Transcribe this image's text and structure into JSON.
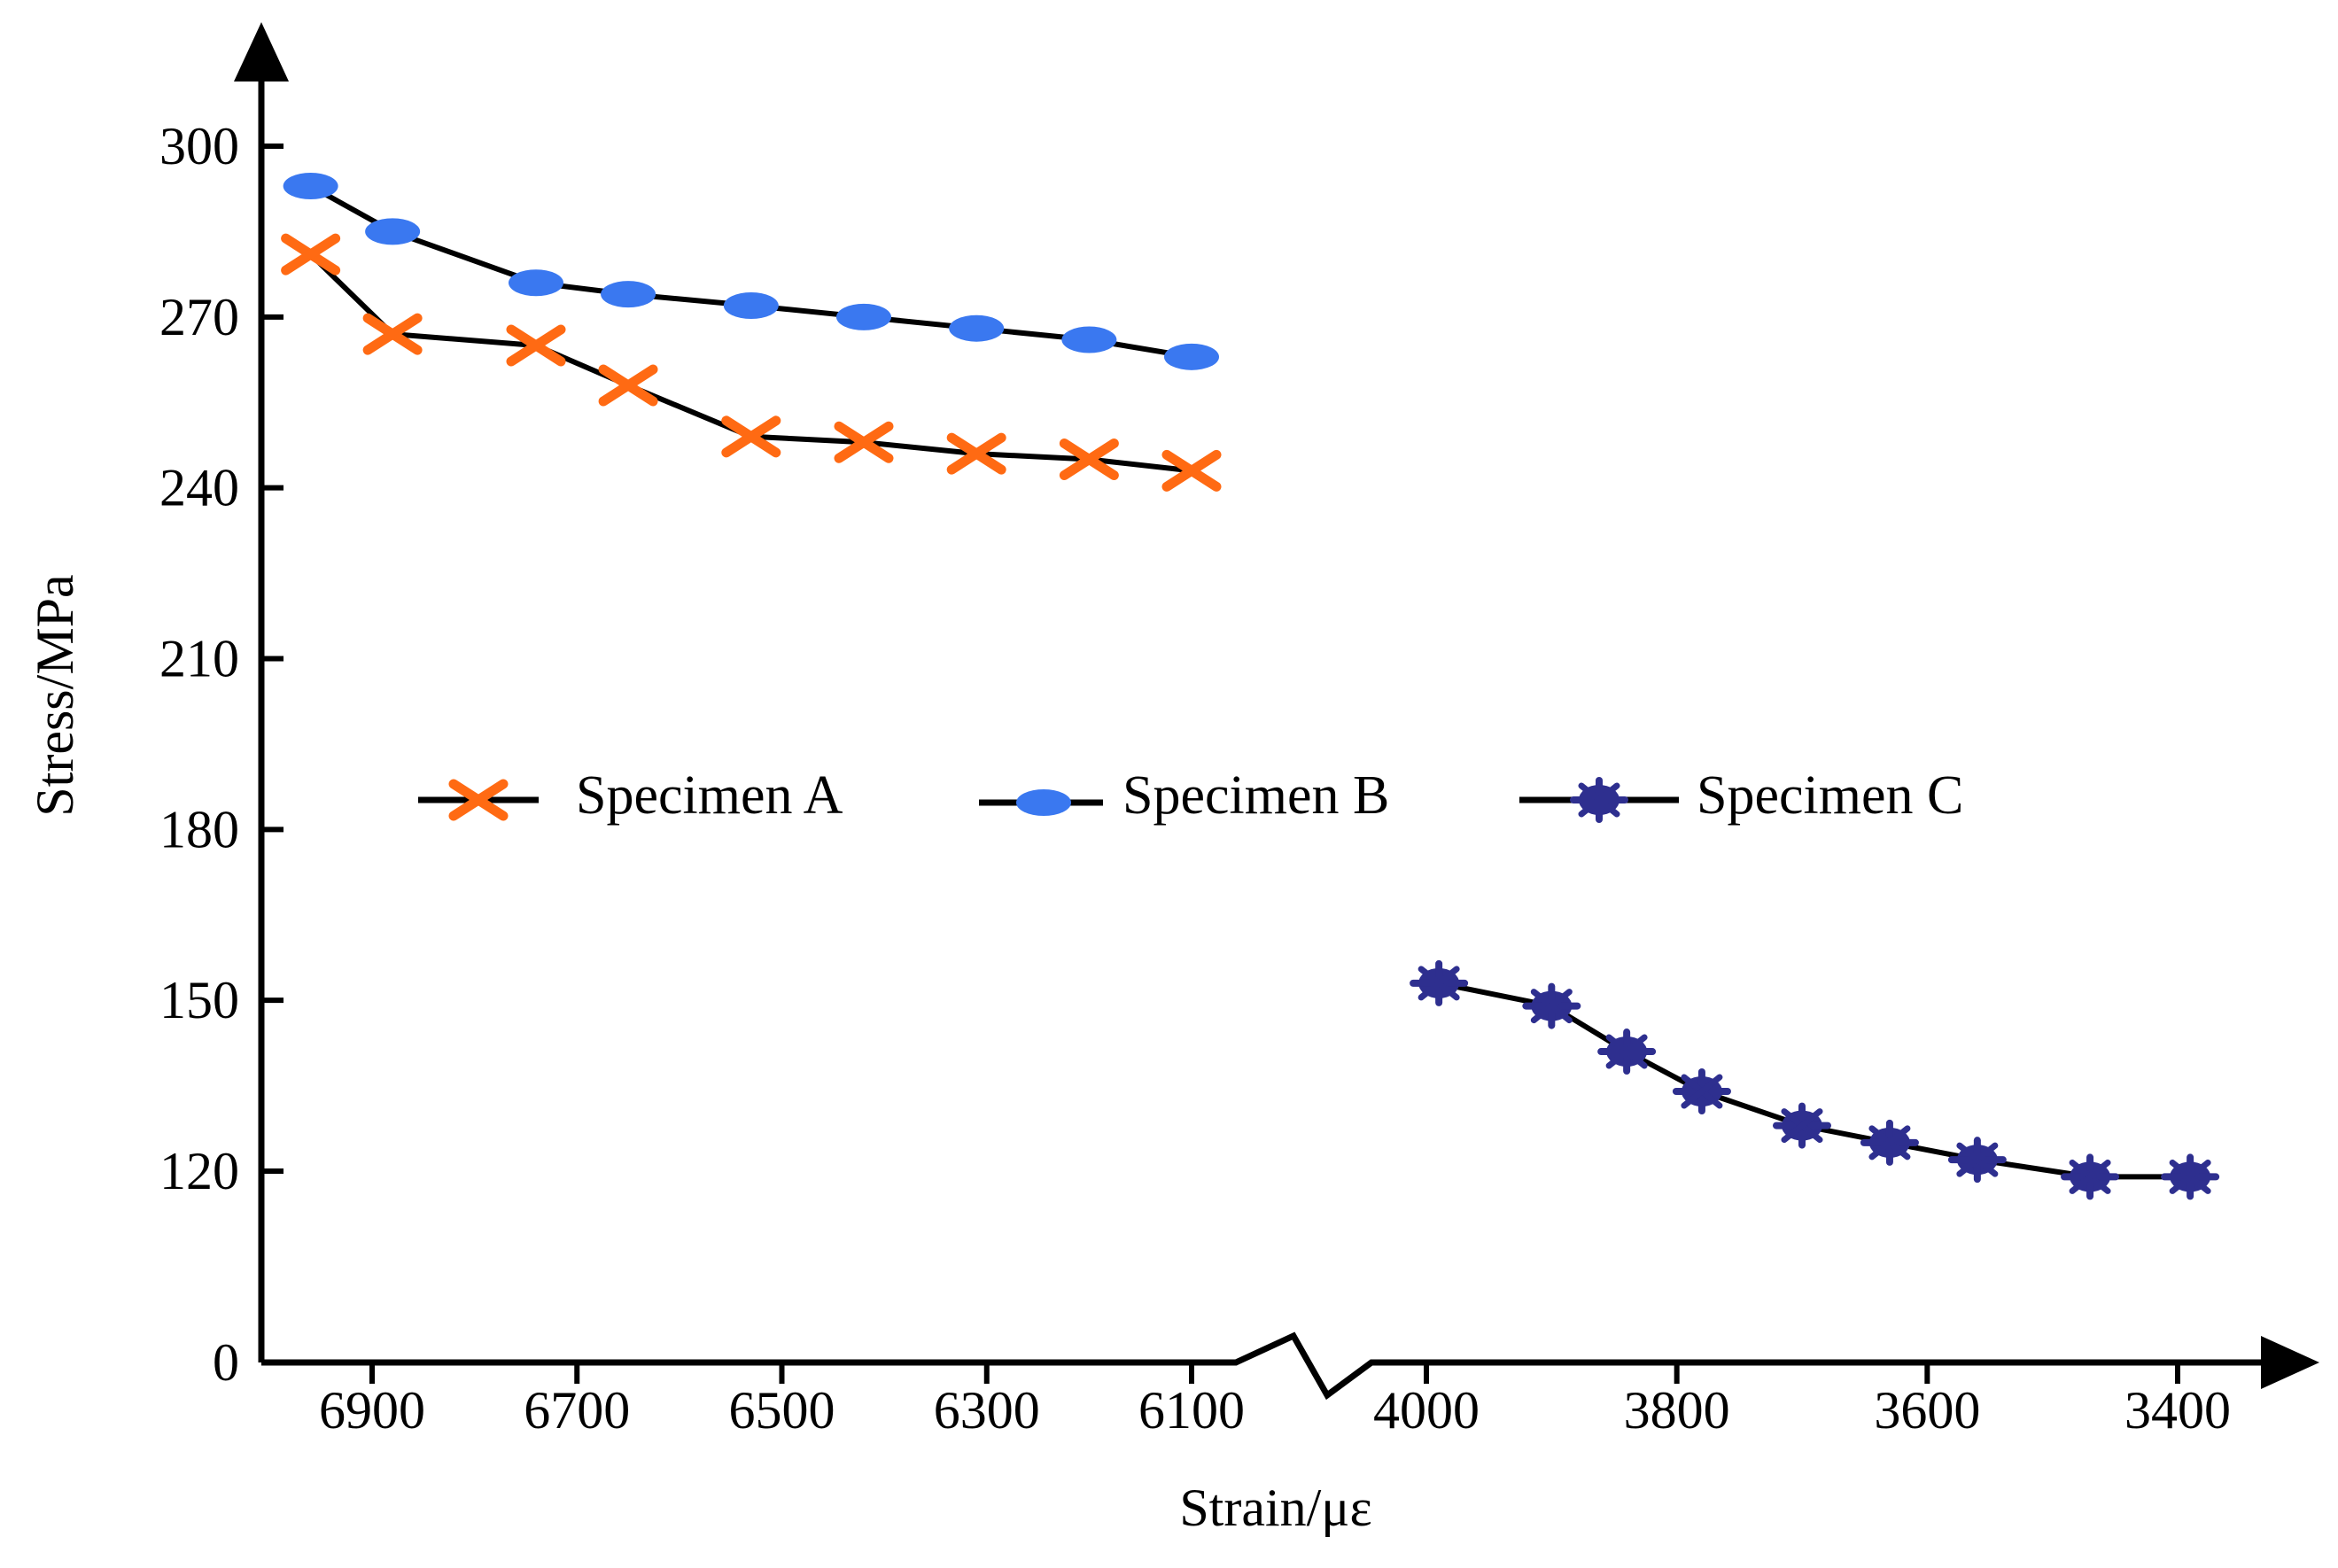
{
  "chart_data": {
    "type": "line",
    "title": "",
    "xlabel": "Strain/με",
    "ylabel": "Stress/MPa",
    "x_axis": {
      "reversed": true,
      "broken": true,
      "segments": [
        {
          "range": [
            6990,
            6050
          ],
          "ticks": [
            6900,
            6700,
            6500,
            6300,
            6100
          ]
        },
        {
          "range": [
            4005,
            3345
          ],
          "ticks": [
            4000,
            3800,
            3600,
            3400
          ]
        }
      ]
    },
    "y_axis": {
      "broken": true,
      "bottom_tick": 0,
      "ticks": [
        0,
        120,
        150,
        180,
        210,
        240,
        270,
        300
      ],
      "scale_range": [
        100,
        310
      ]
    },
    "legend": {
      "placement": "center",
      "entries": [
        "Specimen A",
        "Specimen B",
        "Specimen C"
      ]
    },
    "series": [
      {
        "name": "Specimen A",
        "marker": "x",
        "color": "#ff6a13",
        "line_color": "#000000",
        "x": [
          6960,
          6880,
          6740,
          6650,
          6530,
          6420,
          6310,
          6200,
          6100
        ],
        "y": [
          281,
          267,
          265,
          258,
          249,
          248,
          246,
          245,
          243
        ]
      },
      {
        "name": "Specimen B",
        "marker": "ellipse",
        "color": "#3a78f0",
        "line_color": "#000000",
        "x": [
          6960,
          6880,
          6740,
          6650,
          6530,
          6420,
          6310,
          6200,
          6100
        ],
        "y": [
          293,
          285,
          276,
          274,
          272,
          270,
          268,
          266,
          263
        ]
      },
      {
        "name": "Specimen C",
        "marker": "asterisk",
        "color": "#2e2f8f",
        "line_color": "#000000",
        "x": [
          3990,
          3900,
          3840,
          3780,
          3700,
          3630,
          3560,
          3470,
          3390
        ],
        "y": [
          153,
          149,
          141,
          134,
          128,
          125,
          122,
          119,
          119
        ]
      }
    ]
  }
}
